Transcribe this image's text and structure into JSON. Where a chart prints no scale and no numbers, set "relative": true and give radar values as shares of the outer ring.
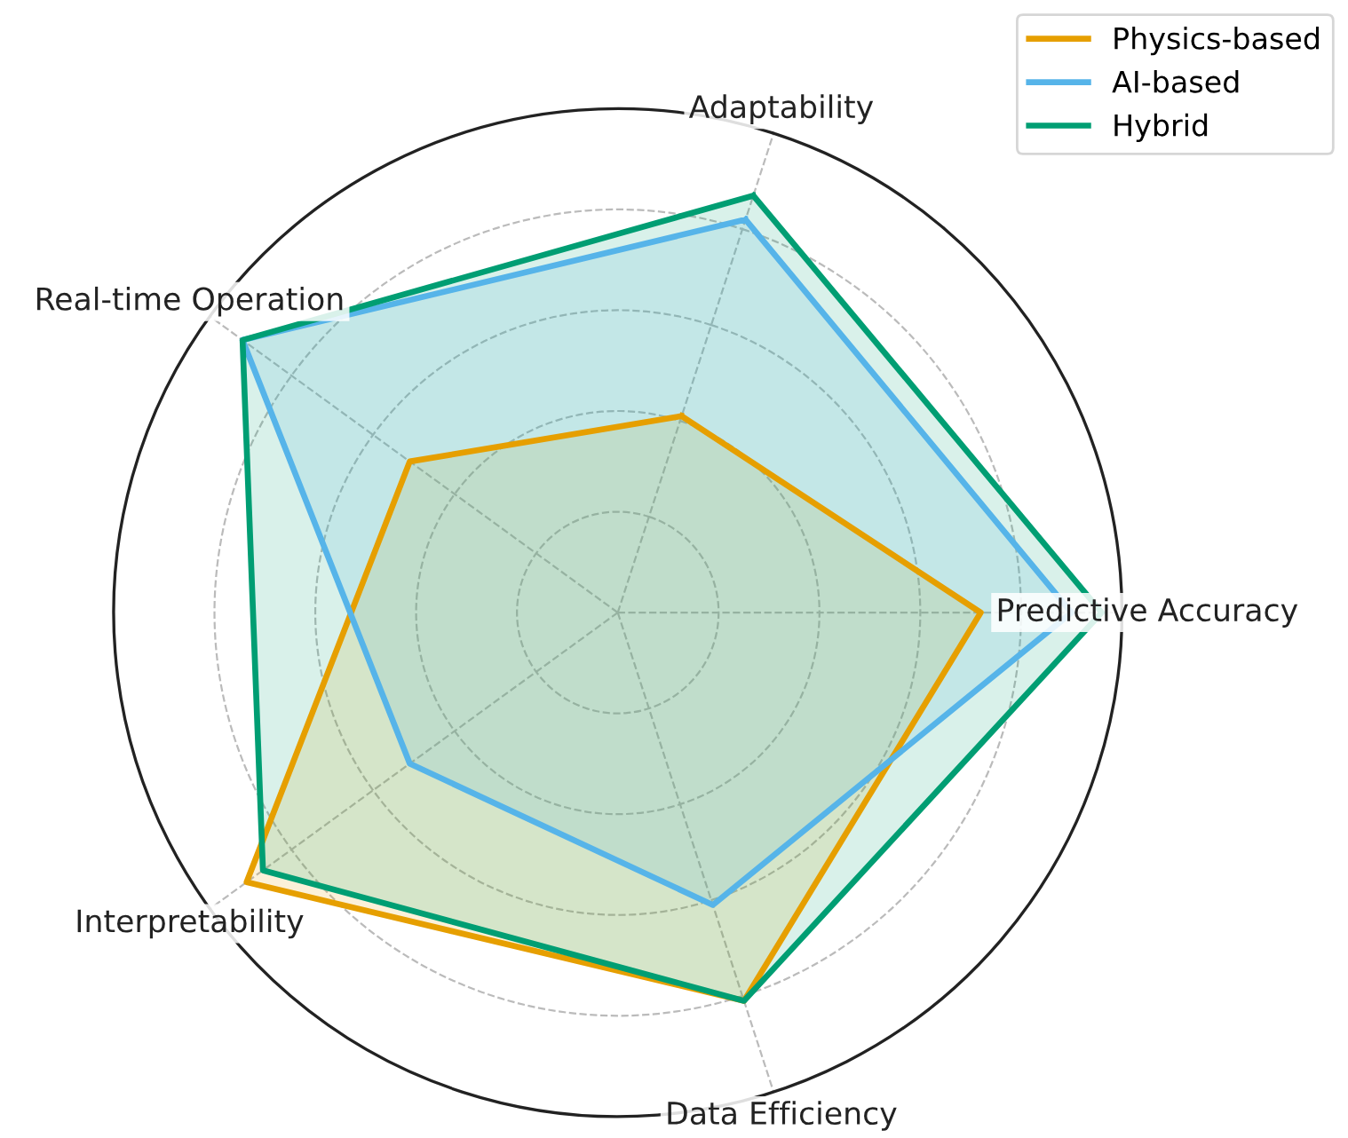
{
  "chart_data": {
    "type": "radar",
    "relative": true,
    "grid": true,
    "legend": "top right",
    "line_style": "solid",
    "categories": [
      "Adaptability",
      "Predictive Accuracy",
      "Data Efficiency",
      "Interpretability",
      "Real-time Operation"
    ],
    "series": [
      {
        "name": "Physics-based",
        "color": "#e69f00",
        "values": [
          0.41,
          0.72,
          0.81,
          0.91,
          0.51
        ]
      },
      {
        "name": "AI-based",
        "color": "#56b4e9",
        "values": [
          0.82,
          0.9,
          0.61,
          0.51,
          0.92
        ]
      },
      {
        "name": "Hybrid",
        "color": "#009e73",
        "values": [
          0.87,
          0.96,
          0.81,
          0.87,
          0.92
        ]
      }
    ]
  }
}
